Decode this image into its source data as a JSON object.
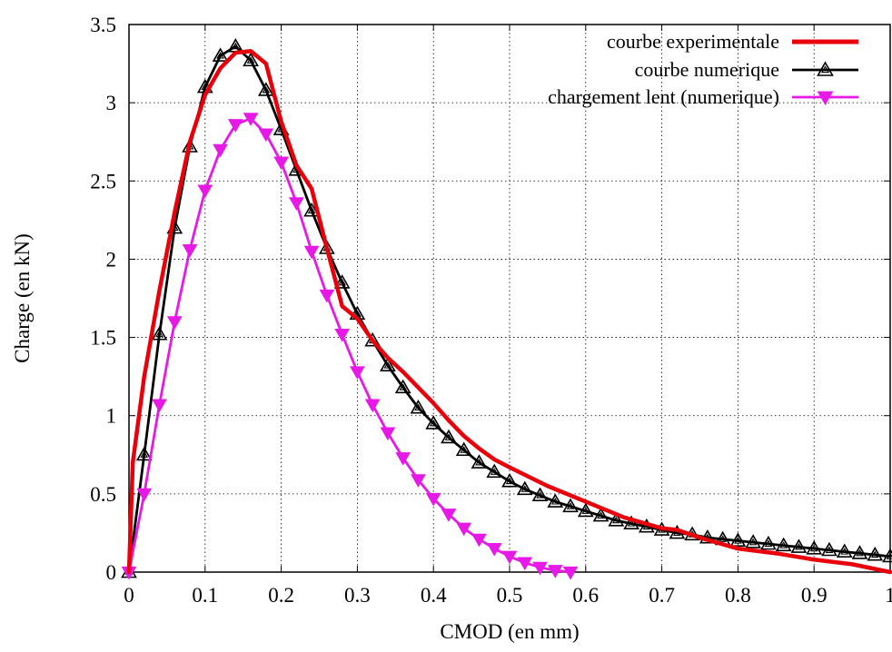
{
  "chart_data": {
    "type": "line",
    "xlabel": "CMOD (en mm)",
    "ylabel": "Charge (en kN)",
    "xlim": [
      0,
      1
    ],
    "ylim": [
      0,
      3.5
    ],
    "xticks": [
      0,
      0.1,
      0.2,
      0.3,
      0.4,
      0.5,
      0.6,
      0.7,
      0.8,
      0.9,
      1
    ],
    "xtick_labels": [
      "0",
      "0.1",
      "0.2",
      "0.3",
      "0.4",
      "0.5",
      "0.6",
      "0.7",
      "0.8",
      "0.9",
      "1"
    ],
    "yticks": [
      0,
      0.5,
      1,
      1.5,
      2,
      2.5,
      3,
      3.5
    ],
    "ytick_labels": [
      "0",
      "0.5",
      "1",
      "1.5",
      "2",
      "2.5",
      "3",
      "3.5"
    ],
    "grid": true,
    "legend_position": "top-right",
    "series": [
      {
        "name": "courbe experimentale",
        "color": "#e8000b",
        "marker": "none",
        "x": [
          0,
          0.005,
          0.02,
          0.04,
          0.06,
          0.08,
          0.1,
          0.12,
          0.14,
          0.16,
          0.18,
          0.2,
          0.22,
          0.24,
          0.26,
          0.28,
          0.3,
          0.32,
          0.34,
          0.36,
          0.38,
          0.4,
          0.42,
          0.44,
          0.46,
          0.48,
          0.5,
          0.55,
          0.6,
          0.65,
          0.7,
          0.72,
          0.75,
          0.8,
          0.85,
          0.9,
          0.95,
          1.0
        ],
        "y": [
          0,
          0.7,
          1.25,
          1.8,
          2.3,
          2.75,
          3.05,
          3.22,
          3.32,
          3.33,
          3.25,
          2.88,
          2.6,
          2.45,
          2.07,
          1.7,
          1.62,
          1.48,
          1.37,
          1.28,
          1.18,
          1.08,
          0.97,
          0.87,
          0.79,
          0.72,
          0.67,
          0.55,
          0.45,
          0.35,
          0.28,
          0.27,
          0.22,
          0.15,
          0.12,
          0.08,
          0.05,
          0.0
        ]
      },
      {
        "name": "courbe numerique",
        "color": "#000000",
        "marker": "triangle-up",
        "x": [
          0,
          0.02,
          0.04,
          0.06,
          0.08,
          0.1,
          0.12,
          0.14,
          0.16,
          0.18,
          0.2,
          0.22,
          0.24,
          0.26,
          0.28,
          0.3,
          0.32,
          0.34,
          0.36,
          0.38,
          0.4,
          0.42,
          0.44,
          0.46,
          0.48,
          0.5,
          0.52,
          0.54,
          0.56,
          0.58,
          0.6,
          0.62,
          0.64,
          0.66,
          0.68,
          0.7,
          0.72,
          0.74,
          0.76,
          0.78,
          0.8,
          0.82,
          0.84,
          0.86,
          0.88,
          0.9,
          0.92,
          0.94,
          0.96,
          0.98,
          1.0
        ],
        "y": [
          0,
          0.75,
          1.52,
          2.2,
          2.72,
          3.1,
          3.3,
          3.36,
          3.27,
          3.08,
          2.83,
          2.57,
          2.31,
          2.07,
          1.85,
          1.65,
          1.48,
          1.32,
          1.18,
          1.05,
          0.95,
          0.86,
          0.78,
          0.7,
          0.64,
          0.58,
          0.53,
          0.49,
          0.45,
          0.42,
          0.39,
          0.36,
          0.33,
          0.31,
          0.29,
          0.27,
          0.25,
          0.24,
          0.22,
          0.21,
          0.2,
          0.19,
          0.18,
          0.17,
          0.16,
          0.15,
          0.14,
          0.13,
          0.12,
          0.11,
          0.1
        ]
      },
      {
        "name": "chargement lent (numerique)",
        "color": "#e619e6",
        "marker": "triangle-down",
        "x": [
          0,
          0.02,
          0.04,
          0.06,
          0.08,
          0.1,
          0.12,
          0.14,
          0.16,
          0.18,
          0.2,
          0.22,
          0.24,
          0.26,
          0.28,
          0.3,
          0.32,
          0.34,
          0.36,
          0.38,
          0.4,
          0.42,
          0.44,
          0.46,
          0.48,
          0.5,
          0.52,
          0.54,
          0.56,
          0.58
        ],
        "y": [
          0,
          0.5,
          1.07,
          1.6,
          2.06,
          2.44,
          2.7,
          2.86,
          2.9,
          2.8,
          2.62,
          2.36,
          2.05,
          1.77,
          1.52,
          1.28,
          1.07,
          0.89,
          0.73,
          0.59,
          0.47,
          0.37,
          0.28,
          0.21,
          0.15,
          0.1,
          0.06,
          0.03,
          0.01,
          0.0
        ]
      }
    ]
  }
}
